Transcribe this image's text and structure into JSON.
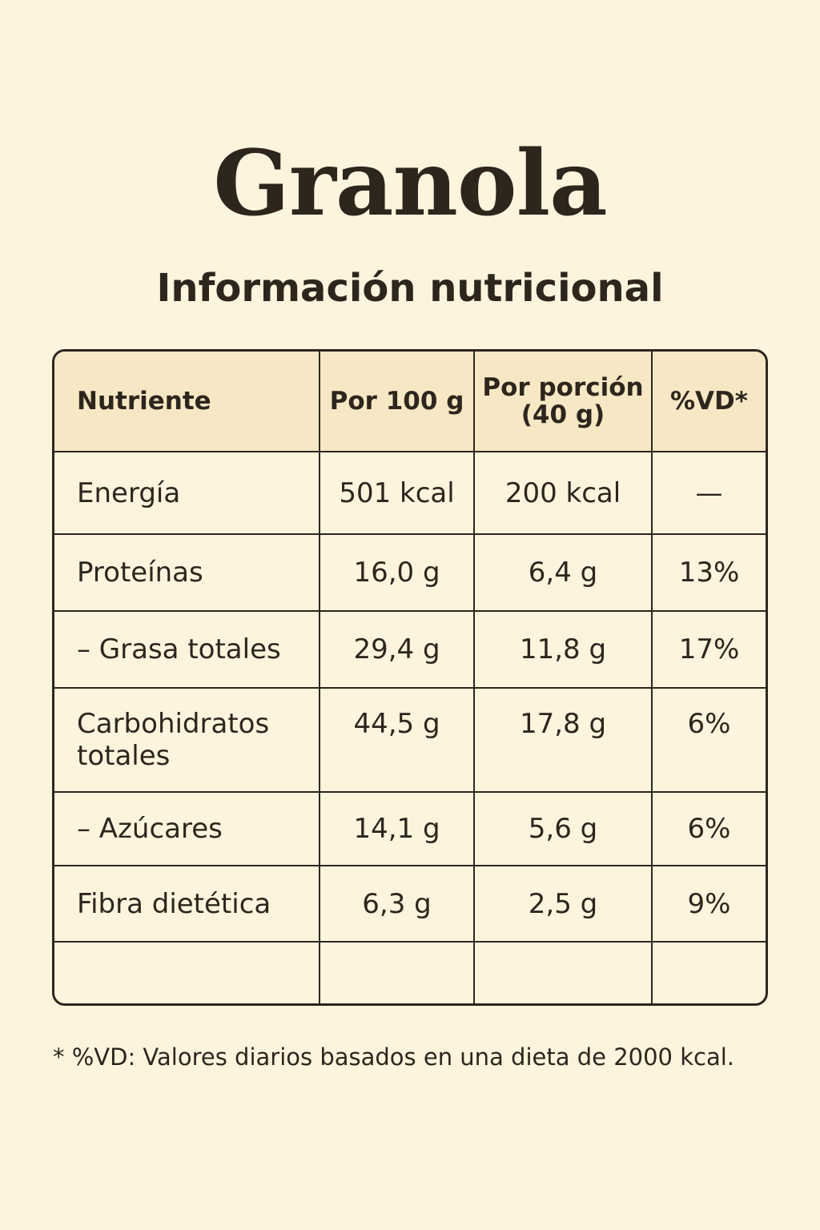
{
  "title": "Granola",
  "subtitle": "Información nutricional",
  "table": {
    "headers": {
      "nutrient": "Nutriente",
      "per100": "Por 100 g",
      "perServing": "Por porción (40 g)",
      "dv": "%VD*"
    },
    "rows": [
      {
        "name": "Energía",
        "per100": "501 kcal",
        "perServing": "200 kcal",
        "dv": "—"
      },
      {
        "name": "Proteínas",
        "per100": "16,0 g",
        "perServing": "6,4 g",
        "dv": "13%"
      },
      {
        "name": "– Grasa totales",
        "per100": "29,4 g",
        "perServing": "11,8 g",
        "dv": "17%"
      },
      {
        "name": "Carbohidratos totales",
        "per100": "44,5 g",
        "perServing": "17,8 g",
        "dv": "6%"
      },
      {
        "name": "– Azúcares",
        "per100": "14,1 g",
        "perServing": "5,6 g",
        "dv": "6%"
      },
      {
        "name": "Fibra dietética",
        "per100": "6,3 g",
        "perServing": "2,5 g",
        "dv": "9%"
      }
    ]
  },
  "footnote": "* %VD: Valores diarios basados en una dieta de 2000 kcal."
}
